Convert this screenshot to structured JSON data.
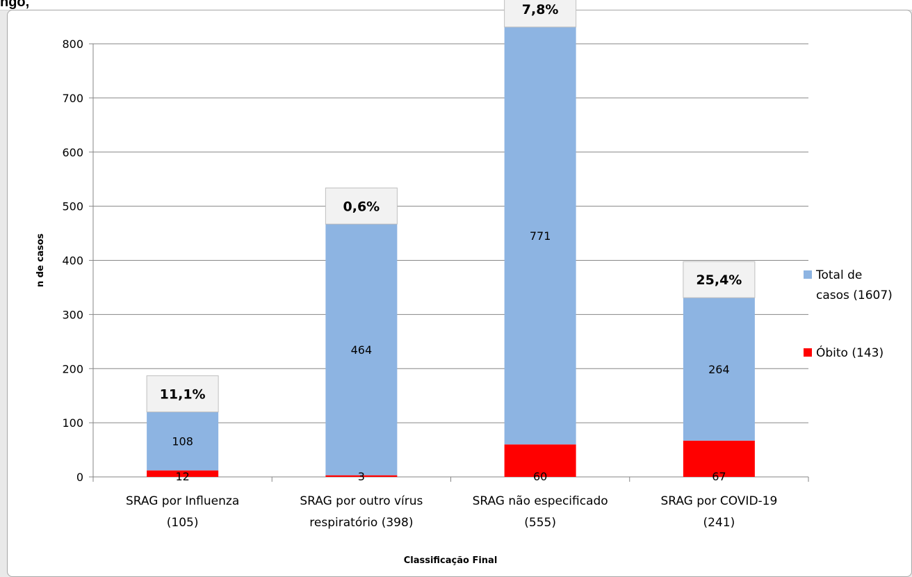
{
  "header_fragment": "ngo,",
  "chart_data": {
    "type": "bar",
    "stacked": true,
    "categories": [
      [
        "SRAG por Influenza",
        "(105)"
      ],
      [
        "SRAG por outro vírus",
        "respiratório (398)"
      ],
      [
        "SRAG não especificado",
        "(555)"
      ],
      [
        "SRAG por COVID-19",
        "(241)"
      ]
    ],
    "series": [
      {
        "name": "Óbito (143)",
        "values": [
          12,
          3,
          60,
          67
        ],
        "labels": [
          "12",
          "3",
          "60",
          "67"
        ],
        "color": "#ff0000"
      },
      {
        "name": "Total de casos (1607)",
        "values": [
          108,
          464,
          771,
          264
        ],
        "labels": [
          "108",
          "464",
          "771",
          "264"
        ],
        "color": "#8db4e2"
      }
    ],
    "percent_labels": [
      "11,1%",
      "0,6%",
      "7,8%",
      "25,4%"
    ],
    "xlabel": "Classificação   Final",
    "ylabel": "n de casos",
    "ylim": [
      0,
      800
    ],
    "yticks": [
      0,
      100,
      200,
      300,
      400,
      500,
      600,
      700,
      800
    ],
    "grid": true,
    "legend_position": "right",
    "legend_order": [
      "Total de casos (1607)",
      "Óbito (143)"
    ]
  }
}
